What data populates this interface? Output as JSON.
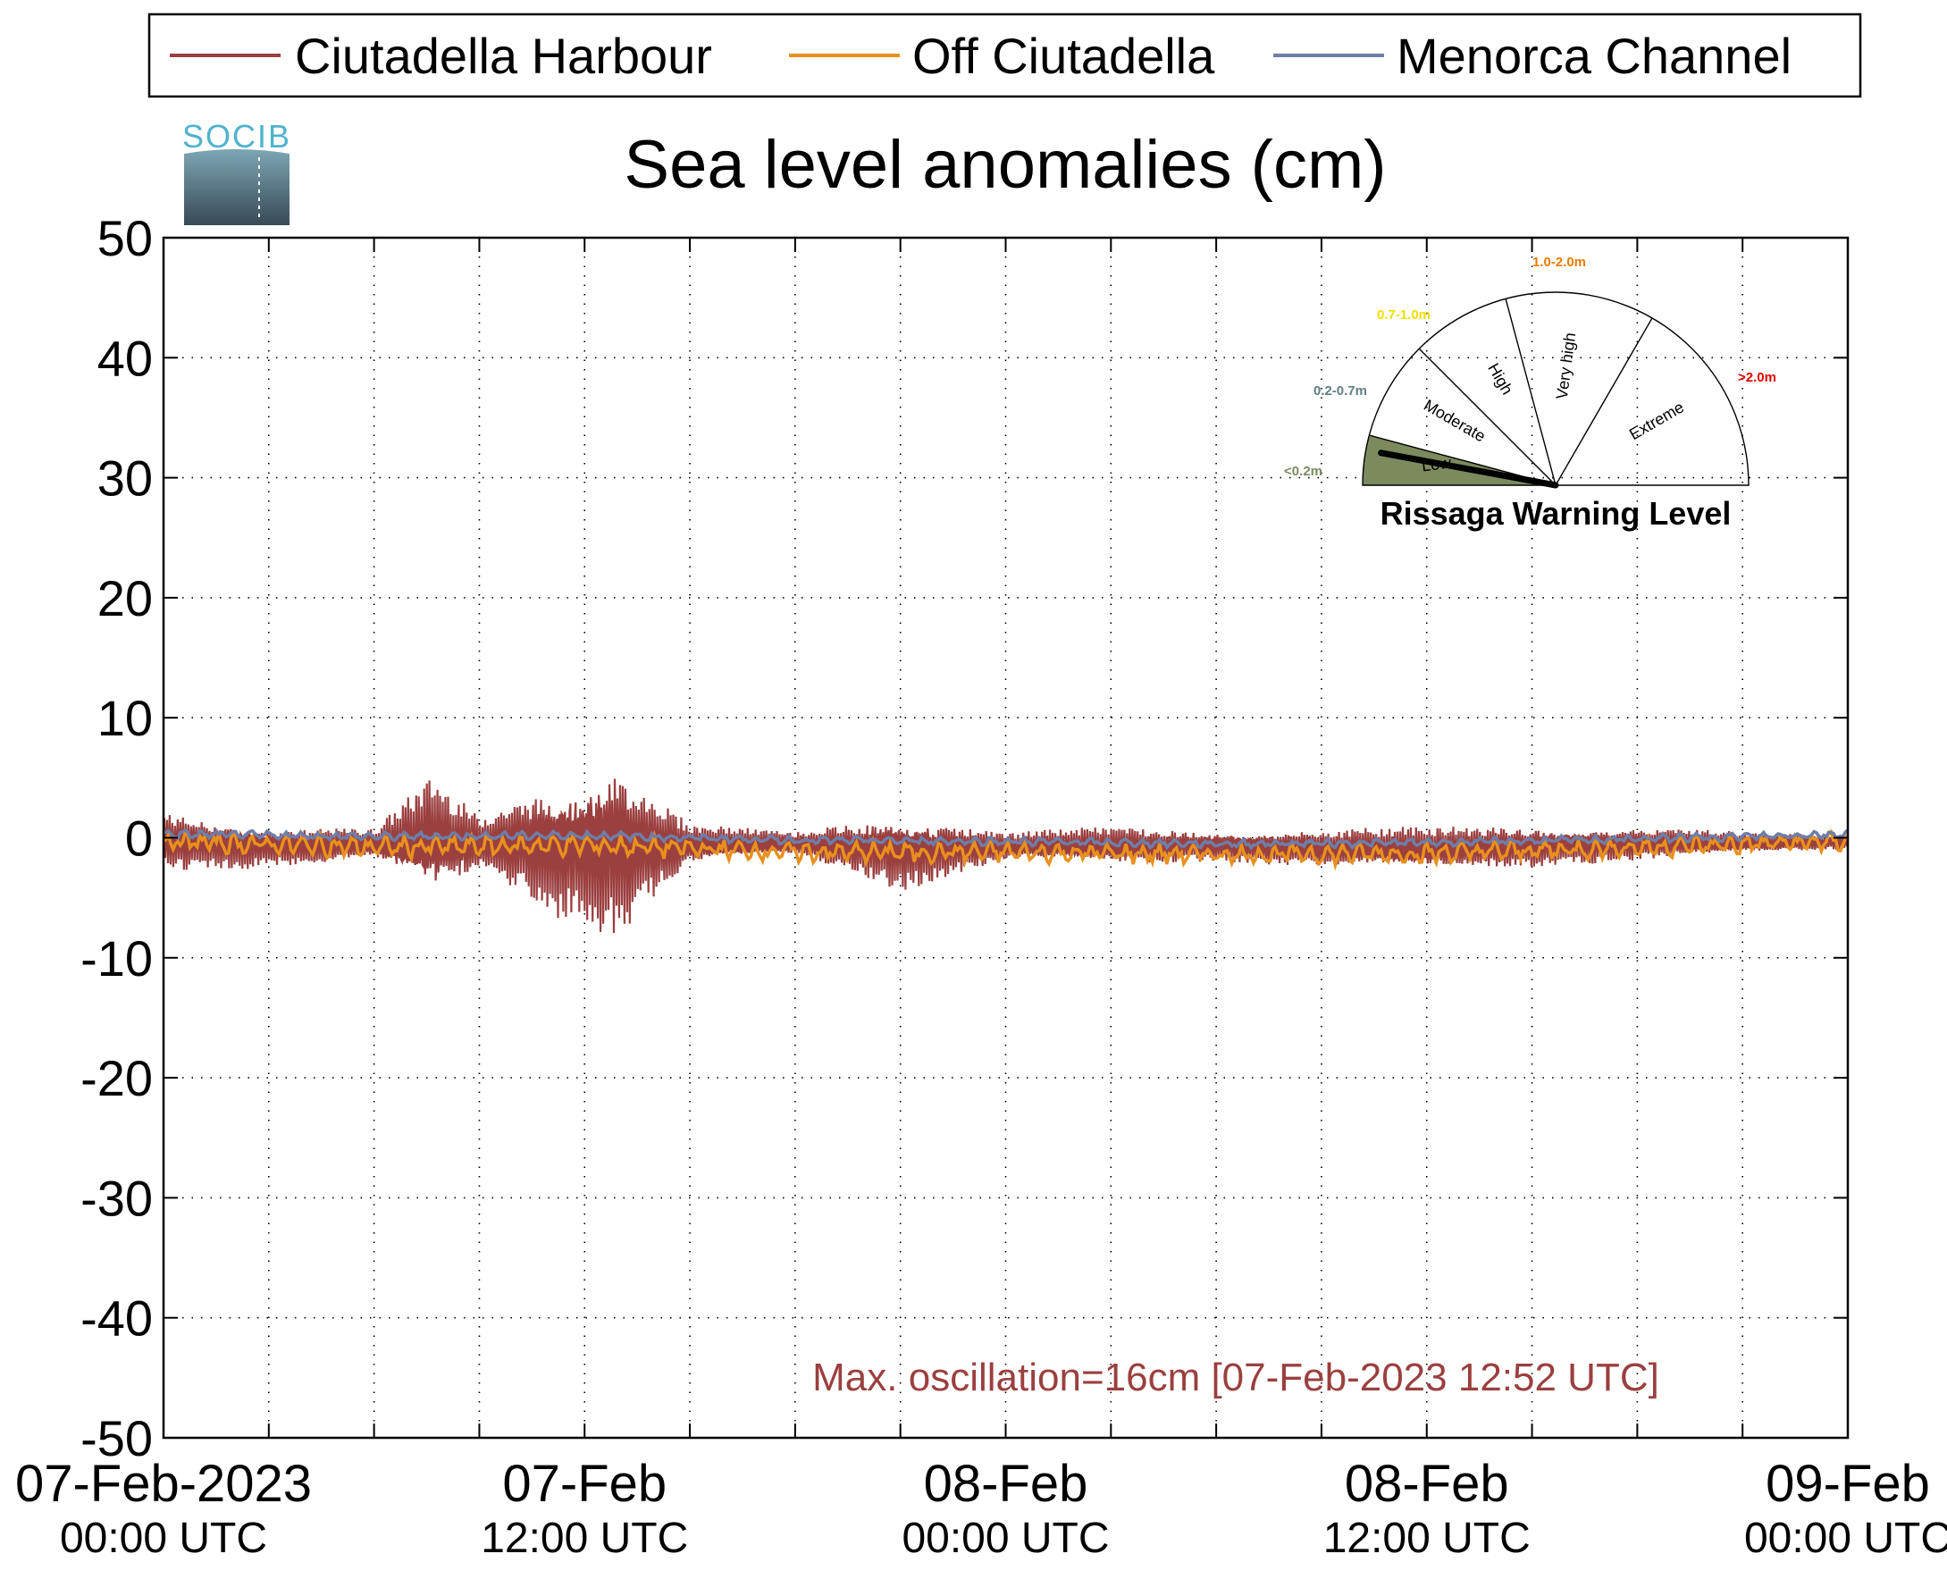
{
  "chart_data": {
    "type": "line",
    "title": "Sea level anomalies (cm)",
    "logo_text": "SOCIB",
    "xlabel": "",
    "ylabel": "",
    "xlim": [
      "2023-02-07T00:00Z",
      "2023-02-09T00:00Z"
    ],
    "ylim": [
      -50,
      50
    ],
    "yticks": [
      50,
      40,
      30,
      20,
      10,
      0,
      -10,
      -20,
      -30,
      -40,
      -50
    ],
    "ytick_labels": [
      "50",
      "40",
      "30",
      "20",
      "10",
      "0",
      "-10",
      "-20",
      "-30",
      "-40",
      "-50"
    ],
    "xtick_labels": [
      {
        "date": "07-Feb-2023",
        "time": "00:00 UTC"
      },
      {
        "date": "07-Feb",
        "time": "12:00 UTC"
      },
      {
        "date": "08-Feb",
        "time": "00:00 UTC"
      },
      {
        "date": "08-Feb",
        "time": "12:00 UTC"
      },
      {
        "date": "09-Feb",
        "time": "00:00 UTC"
      }
    ],
    "grid": true,
    "legend_position": "top",
    "annotation": "Max. oscillation=16cm [07-Feb-2023 12:52 UTC]",
    "series": [
      {
        "name": "Ciutadella Harbour",
        "color": "#9b3f3f",
        "x": [
          "2023-02-07T00:00Z",
          "2023-02-07T03:00Z",
          "2023-02-07T06:00Z",
          "2023-02-07T07:40Z",
          "2023-02-07T09:00Z",
          "2023-02-07T11:00Z",
          "2023-02-07T12:52Z",
          "2023-02-07T15:00Z",
          "2023-02-07T18:00Z",
          "2023-02-07T21:00Z",
          "2023-02-08T00:00Z",
          "2023-02-08T03:00Z",
          "2023-02-08T06:00Z",
          "2023-02-08T09:00Z",
          "2023-02-08T12:00Z",
          "2023-02-08T15:00Z",
          "2023-02-08T18:00Z",
          "2023-02-08T21:00Z",
          "2023-02-09T00:00Z"
        ],
        "envelope_max": [
          2.5,
          1.2,
          0.8,
          5.3,
          2.0,
          5.5,
          7.5,
          1.2,
          0.5,
          2.5,
          0.5,
          1.0,
          0.8,
          0.8,
          1.0,
          1.2,
          1.0,
          0.5,
          0.3
        ],
        "envelope_min": [
          -3.0,
          -2.5,
          -2.0,
          -5.8,
          -3.0,
          -6.5,
          -8.8,
          -2.5,
          -1.5,
          -4.5,
          -2.0,
          -2.5,
          -2.0,
          -2.5,
          -3.0,
          -2.5,
          -2.0,
          -1.5,
          -1.0
        ]
      },
      {
        "name": "Off Ciutadella",
        "color": "#e8901e",
        "x": [
          "2023-02-07T00:00Z",
          "2023-02-07T06:00Z",
          "2023-02-07T12:00Z",
          "2023-02-07T18:00Z",
          "2023-02-08T00:00Z",
          "2023-02-08T06:00Z",
          "2023-02-08T12:00Z",
          "2023-02-08T18:00Z",
          "2023-02-09T00:00Z"
        ],
        "values": [
          -0.3,
          -0.8,
          -0.6,
          -1.2,
          -1.2,
          -1.4,
          -1.3,
          -0.8,
          -0.3
        ]
      },
      {
        "name": "Menorca Channel",
        "color": "#6e7ea8",
        "x": [
          "2023-02-07T00:00Z",
          "2023-02-07T06:00Z",
          "2023-02-07T12:00Z",
          "2023-02-07T18:00Z",
          "2023-02-08T00:00Z",
          "2023-02-08T06:00Z",
          "2023-02-08T12:00Z",
          "2023-02-08T18:00Z",
          "2023-02-09T00:00Z"
        ],
        "values": [
          0.3,
          0.1,
          0.2,
          -0.2,
          -0.3,
          -0.5,
          -0.4,
          -0.1,
          0.3
        ]
      }
    ],
    "warning_gauge": {
      "title": "Rissaga Warning Level",
      "current_level": "Low",
      "levels": [
        {
          "name": "Low",
          "range": "<0.2m",
          "color": "#7c8a5e"
        },
        {
          "name": "Moderate",
          "range": "0.2-0.7m",
          "color": "#5f8082"
        },
        {
          "name": "High",
          "range": "0.7-1.0m",
          "color": "#f0e000"
        },
        {
          "name": "Very high",
          "range": "1.0-2.0m",
          "color": "#f07a00"
        },
        {
          "name": "Extreme",
          "range": ">2.0m",
          "color": "#e00000"
        }
      ]
    }
  }
}
